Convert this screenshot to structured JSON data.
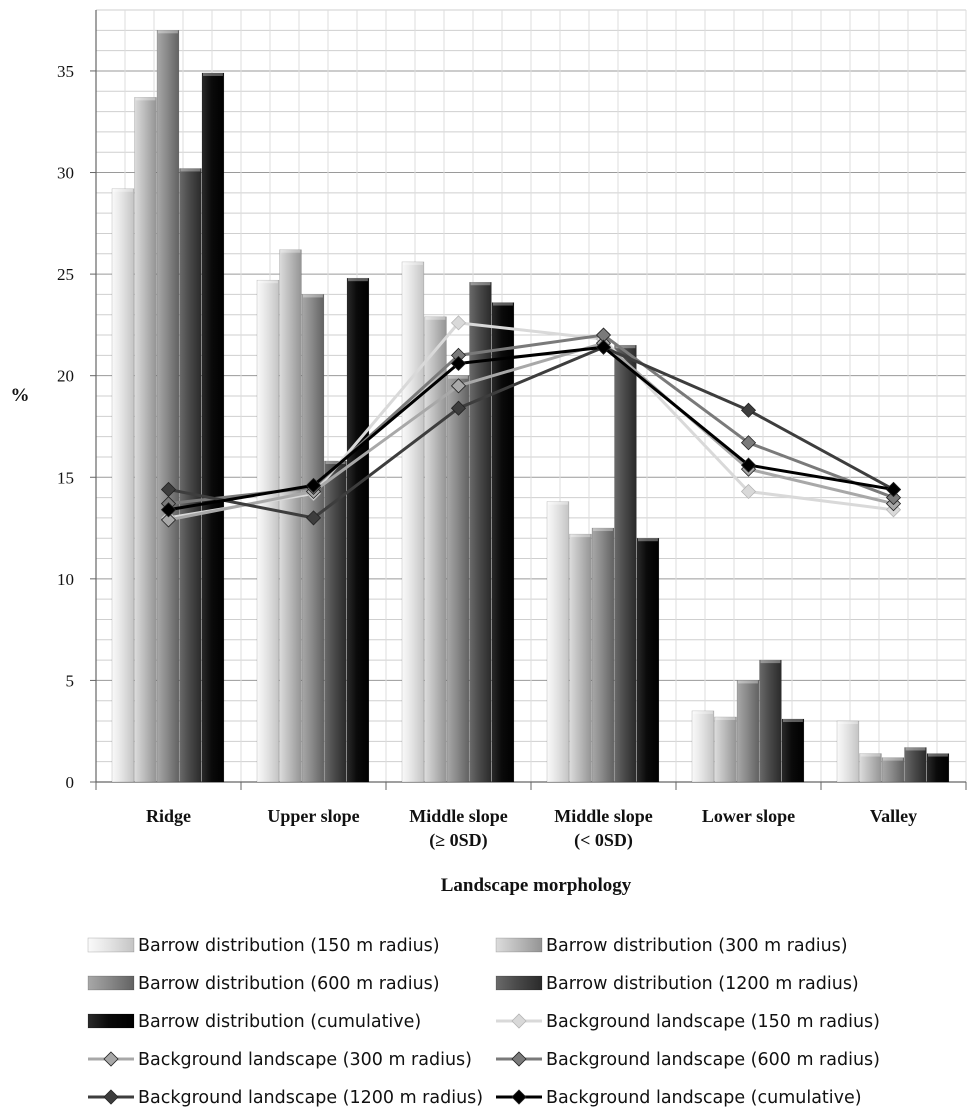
{
  "chart_data": {
    "type": "bar",
    "title": "",
    "xlabel": "Landscape morphology",
    "ylabel": "%",
    "ylim": [
      0,
      38
    ],
    "yticks": [
      "0",
      "5",
      "10",
      "15",
      "20",
      "25",
      "30",
      "35"
    ],
    "grid": true,
    "legend_position": "bottom",
    "categories": [
      [
        "Ridge"
      ],
      [
        "Upper slope"
      ],
      [
        "Middle slope",
        "(≥ 0SD)"
      ],
      [
        "Middle slope",
        "(< 0SD)"
      ],
      [
        "Lower slope"
      ],
      [
        "Valley"
      ]
    ],
    "bar_series": [
      {
        "name": "Barrow distribution (150 m radius)",
        "values": [
          29.2,
          24.7,
          25.6,
          13.8,
          3.5,
          3.0
        ],
        "color": "#e8e8e8"
      },
      {
        "name": "Barrow distribution (300 m radius)",
        "values": [
          33.7,
          26.2,
          22.9,
          12.2,
          3.2,
          1.4
        ],
        "color": "#bdbdbd"
      },
      {
        "name": "Barrow distribution (600 m radius)",
        "values": [
          37.0,
          24.0,
          20.0,
          12.5,
          5.0,
          1.2
        ],
        "color": "#8a8a8a"
      },
      {
        "name": "Barrow distribution (1200 m radius)",
        "values": [
          30.2,
          15.8,
          24.6,
          21.5,
          6.0,
          1.7
        ],
        "color": "#4a4a4a"
      },
      {
        "name": "Barrow distribution (cumulative)",
        "values": [
          34.9,
          24.8,
          23.6,
          12.0,
          3.1,
          1.4
        ],
        "color": "#080808"
      }
    ],
    "line_series": [
      {
        "name": "Background landscape (150 m radius)",
        "values": [
          13.0,
          14.2,
          22.6,
          21.8,
          14.3,
          13.4
        ],
        "color": "#d9d9d9"
      },
      {
        "name": "Background landscape (300 m radius)",
        "values": [
          12.9,
          14.3,
          19.5,
          21.6,
          15.4,
          13.7
        ],
        "color": "#a8a8a8"
      },
      {
        "name": "Background landscape (600 m radius)",
        "values": [
          13.7,
          14.5,
          21.0,
          22.0,
          16.7,
          14.0
        ],
        "color": "#7a7a7a"
      },
      {
        "name": "Background landscape (1200 m radius)",
        "values": [
          14.4,
          13.0,
          18.4,
          21.4,
          18.3,
          14.4
        ],
        "color": "#3d3d3d"
      },
      {
        "name": "Background landscape (cumulative)",
        "values": [
          13.4,
          14.6,
          20.6,
          21.4,
          15.6,
          14.4
        ],
        "color": "#000000"
      }
    ]
  }
}
